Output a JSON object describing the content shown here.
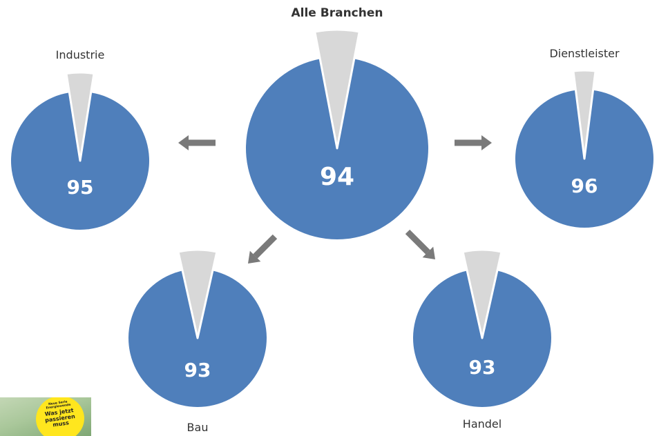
{
  "chart_data": [
    {
      "type": "pie",
      "title": "Alle Branchen",
      "value_label": "94",
      "slices": [
        {
          "value": 94,
          "color": "#4f7fbb"
        },
        {
          "value": 6,
          "color": "#d8d8d8"
        }
      ]
    },
    {
      "type": "pie",
      "title": "Industrie",
      "value_label": "95",
      "slices": [
        {
          "value": 95,
          "color": "#4f7fbb"
        },
        {
          "value": 5,
          "color": "#d8d8d8"
        }
      ]
    },
    {
      "type": "pie",
      "title": "Dienstleister",
      "value_label": "96",
      "slices": [
        {
          "value": 96,
          "color": "#4f7fbb"
        },
        {
          "value": 4,
          "color": "#d8d8d8"
        }
      ]
    },
    {
      "type": "pie",
      "title": "Bau",
      "value_label": "93",
      "slices": [
        {
          "value": 93,
          "color": "#4f7fbb"
        },
        {
          "value": 7,
          "color": "#d8d8d8"
        }
      ]
    },
    {
      "type": "pie",
      "title": "Handel",
      "value_label": "93",
      "slices": [
        {
          "value": 93,
          "color": "#4f7fbb"
        },
        {
          "value": 7,
          "color": "#d8d8d8"
        }
      ]
    }
  ],
  "colors": {
    "main": "#4f7fbb",
    "remainder": "#d8d8d8",
    "arrow": "#7a7a7a"
  },
  "thumbnail": {
    "badge_line1": "Neue Serie",
    "badge_line2": "Energiewende",
    "badge_text": "Was jetzt passieren muss"
  }
}
